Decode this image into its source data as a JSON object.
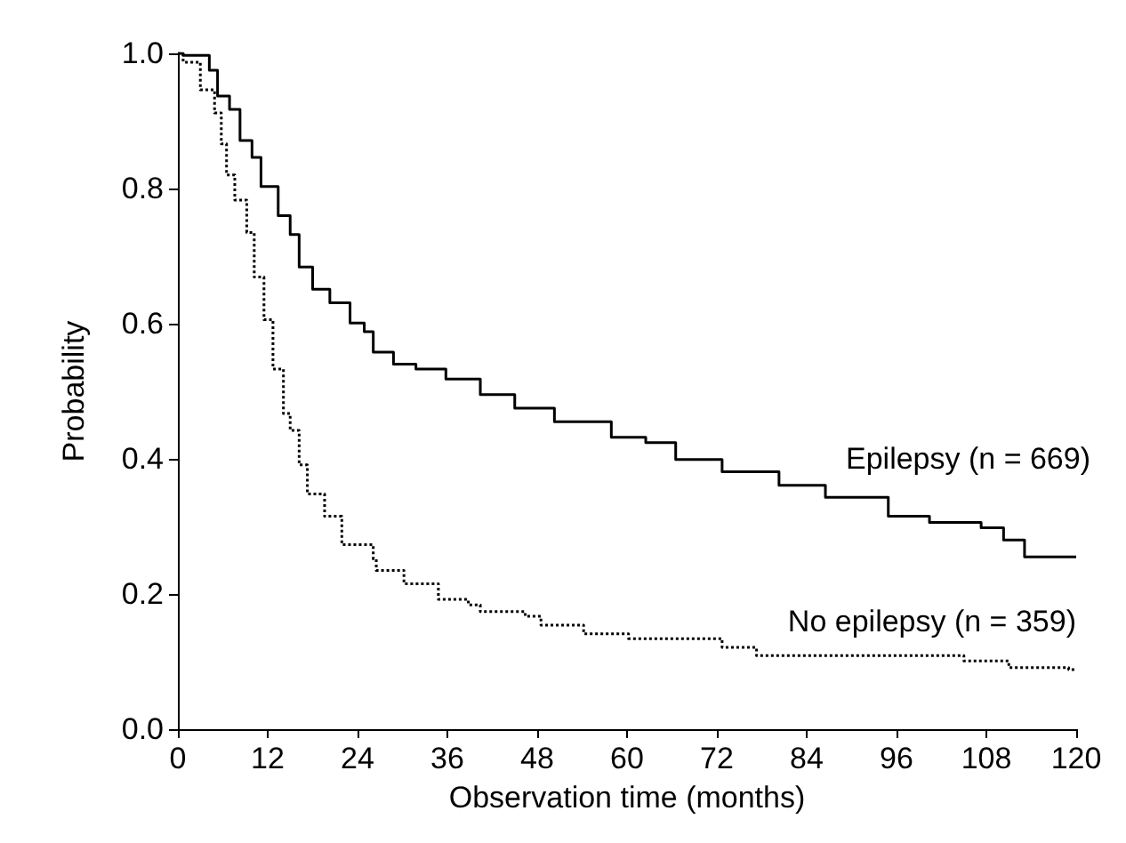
{
  "chart_data": {
    "type": "step",
    "xlabel": "Observation time (months)",
    "ylabel": "Probability",
    "xlim": [
      0,
      120
    ],
    "xticks": [
      0,
      12,
      24,
      36,
      48,
      60,
      72,
      84,
      96,
      108,
      120
    ],
    "ylim": [
      0,
      1
    ],
    "yticks": [
      {
        "value": 0,
        "label": "0.0"
      },
      {
        "value": 0.2,
        "label": "0.2"
      },
      {
        "value": 0.4,
        "label": "0.4"
      },
      {
        "value": 0.6,
        "label": "0.6"
      },
      {
        "value": 0.8,
        "label": "0.8"
      },
      {
        "value": 1,
        "label": "1.0"
      }
    ],
    "grid": false,
    "legend": false,
    "marker": "none",
    "series": [
      {
        "name": "Epilepsy (n = 669)",
        "color": "#000000",
        "line_style": "solid",
        "x": [
          0,
          0.7,
          4.2,
          5.3,
          6.9,
          8.3,
          9.9,
          11.1,
          13.4,
          15,
          16.2,
          18,
          20.3,
          23,
          24.9,
          26.1,
          28.8,
          31.8,
          35.8,
          40.4,
          45,
          50.3,
          57.9,
          62.5,
          66.5,
          72.7,
          80.3,
          86.5,
          94.9,
          100.4,
          107.3,
          110.3,
          113.1,
          120
        ],
        "values": [
          1,
          0.997,
          0.975,
          0.937,
          0.917,
          0.871,
          0.846,
          0.803,
          0.76,
          0.732,
          0.684,
          0.651,
          0.631,
          0.601,
          0.588,
          0.558,
          0.54,
          0.533,
          0.518,
          0.495,
          0.475,
          0.455,
          0.432,
          0.424,
          0.399,
          0.381,
          0.361,
          0.343,
          0.315,
          0.306,
          0.298,
          0.28,
          0.255,
          0.255
        ]
      },
      {
        "name": "No epilepsy (n = 359)",
        "color": "#000000",
        "line_style": "dotted",
        "x": [
          0,
          0.7,
          3,
          4.9,
          5.8,
          6.5,
          7.6,
          9.2,
          10.2,
          11.5,
          12.7,
          14.1,
          15,
          16.2,
          17.3,
          19.6,
          21.9,
          26.1,
          26.5,
          30.2,
          34.8,
          38.8,
          40.4,
          46.4,
          48.5,
          54.2,
          60.2,
          72.7,
          77.3,
          95.8,
          105,
          111,
          119,
          120
        ],
        "values": [
          1,
          0.987,
          0.946,
          0.912,
          0.866,
          0.82,
          0.783,
          0.735,
          0.669,
          0.606,
          0.533,
          0.467,
          0.442,
          0.391,
          0.348,
          0.315,
          0.273,
          0.252,
          0.235,
          0.215,
          0.192,
          0.184,
          0.174,
          0.167,
          0.154,
          0.141,
          0.134,
          0.121,
          0.109,
          0.109,
          0.101,
          0.091,
          0.088,
          0.088
        ]
      }
    ]
  }
}
